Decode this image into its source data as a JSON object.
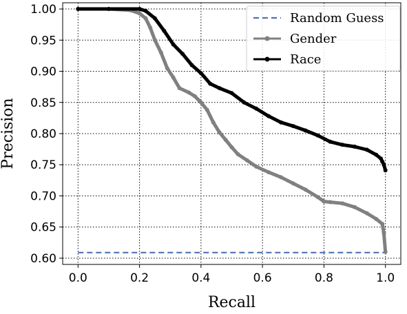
{
  "chart_data": {
    "type": "line",
    "title": "",
    "xlabel": "Recall",
    "ylabel": "Precision",
    "xlim": [
      -0.05,
      1.05
    ],
    "ylim": [
      0.59,
      1.01
    ],
    "xticks": [
      0.0,
      0.2,
      0.4,
      0.6,
      0.8,
      1.0
    ],
    "xtick_labels": [
      "0.0",
      "0.2",
      "0.4",
      "0.6",
      "0.8",
      "1.0"
    ],
    "yticks": [
      0.6,
      0.65,
      0.7,
      0.75,
      0.8,
      0.85,
      0.9,
      0.95,
      1.0
    ],
    "ytick_labels": [
      "0.60",
      "0.65",
      "0.70",
      "0.75",
      "0.80",
      "0.85",
      "0.90",
      "0.95",
      "1.00"
    ],
    "grid": true,
    "legend_position": "upper-right",
    "series": [
      {
        "name": "Random Guess",
        "color": "#4c72b0",
        "style": "dashed",
        "x": [
          0.0,
          1.0
        ],
        "y": [
          0.609,
          0.609
        ]
      },
      {
        "name": "Gender",
        "color": "#808080",
        "style": "solid-marker",
        "x": [
          0.0,
          0.1,
          0.17,
          0.2,
          0.22,
          0.235,
          0.25,
          0.27,
          0.29,
          0.31,
          0.33,
          0.36,
          0.38,
          0.4,
          0.42,
          0.44,
          0.46,
          0.48,
          0.5,
          0.52,
          0.55,
          0.58,
          0.62,
          0.66,
          0.7,
          0.74,
          0.78,
          0.8,
          0.82,
          0.86,
          0.9,
          0.94,
          0.97,
          0.99,
          0.995,
          1.0
        ],
        "y": [
          1.0,
          1.0,
          0.998,
          0.993,
          0.985,
          0.97,
          0.95,
          0.93,
          0.905,
          0.89,
          0.873,
          0.866,
          0.86,
          0.85,
          0.838,
          0.818,
          0.802,
          0.79,
          0.778,
          0.767,
          0.757,
          0.747,
          0.738,
          0.73,
          0.72,
          0.71,
          0.698,
          0.691,
          0.69,
          0.688,
          0.682,
          0.672,
          0.663,
          0.655,
          0.64,
          0.61
        ]
      },
      {
        "name": "Race",
        "color": "#000000",
        "style": "solid-marker",
        "x": [
          0.0,
          0.1,
          0.2,
          0.22,
          0.25,
          0.28,
          0.31,
          0.34,
          0.37,
          0.4,
          0.43,
          0.46,
          0.5,
          0.54,
          0.58,
          0.62,
          0.66,
          0.7,
          0.74,
          0.78,
          0.82,
          0.86,
          0.9,
          0.94,
          0.97,
          0.985,
          0.99,
          0.995,
          1.0
        ],
        "y": [
          1.0,
          1.0,
          1.0,
          0.997,
          0.985,
          0.965,
          0.943,
          0.928,
          0.91,
          0.897,
          0.88,
          0.873,
          0.865,
          0.85,
          0.84,
          0.828,
          0.818,
          0.812,
          0.805,
          0.797,
          0.787,
          0.782,
          0.779,
          0.774,
          0.766,
          0.76,
          0.755,
          0.75,
          0.741
        ]
      }
    ]
  },
  "colors": {
    "grid": "#000000",
    "axis": "#000000",
    "legend_border": "#cccccc"
  }
}
